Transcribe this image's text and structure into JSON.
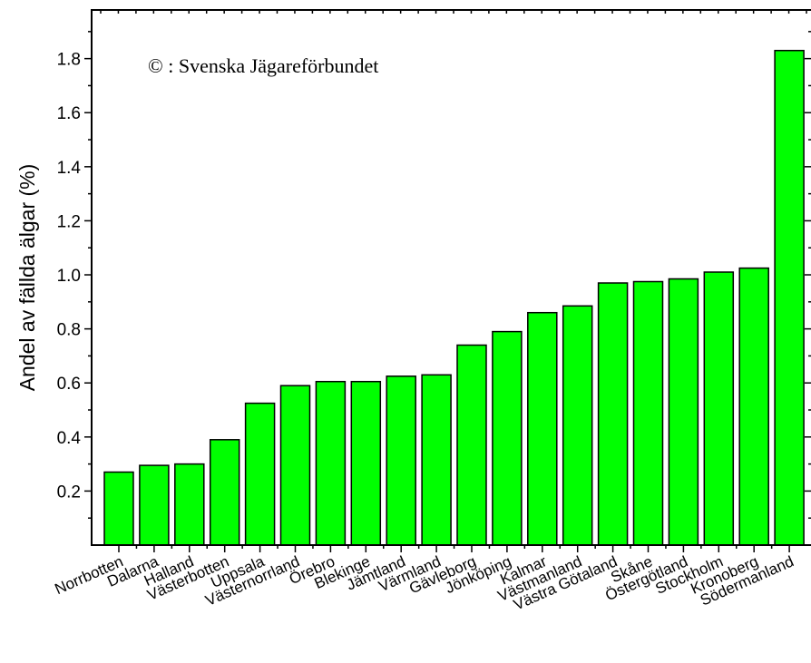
{
  "chart_data": {
    "type": "bar",
    "ylabel": "Andel av fällda älgar (%)",
    "annotation": "© : Svenska Jägareförbundet",
    "categories": [
      "Norrbotten",
      "Dalarna",
      "Halland",
      "Västerbotten",
      "Uppsala",
      "Västernorrland",
      "Örebro",
      "Blekinge",
      "Jämtland",
      "Värmland",
      "Gävleborg",
      "Jönköping",
      "Kalmar",
      "Västmanland",
      "Västra Götaland",
      "Skåne",
      "Östergötland",
      "Stockholm",
      "Kronoberg",
      "Södermanland"
    ],
    "values": [
      0.27,
      0.295,
      0.3,
      0.39,
      0.525,
      0.59,
      0.605,
      0.605,
      0.625,
      0.63,
      0.74,
      0.79,
      0.86,
      0.885,
      0.97,
      0.975,
      0.985,
      1.01,
      1.025,
      1.83
    ],
    "ylim": [
      0.0,
      1.98
    ],
    "yticks": [
      0.2,
      0.4,
      0.6,
      0.8,
      1.0,
      1.2,
      1.4,
      1.6,
      1.8
    ],
    "bar_color": "#00ff00",
    "grid": false
  }
}
